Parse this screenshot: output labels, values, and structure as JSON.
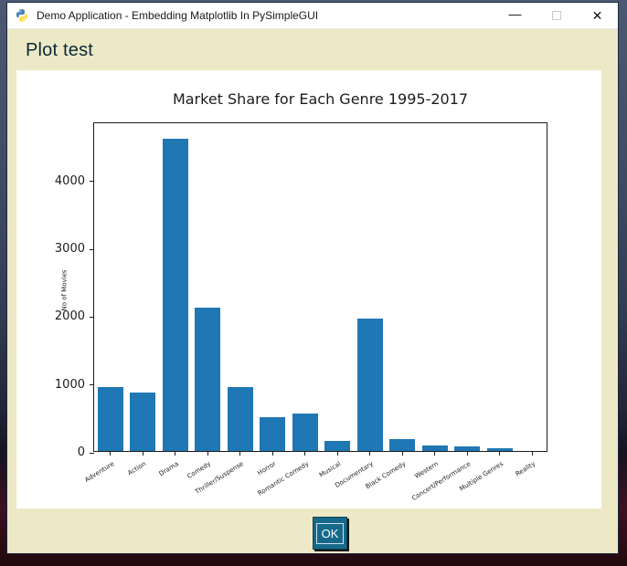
{
  "window": {
    "title": "Demo Application - Embedding Matplotlib In PySimpleGUI",
    "minimize_glyph": "—",
    "close_glyph": "✕"
  },
  "heading": "Plot test",
  "ok_button_label": "OK",
  "colors": {
    "window_bg": "#ede9c6",
    "titlebar_bg": "#ffffff",
    "heading_text": "#0a2b38",
    "button_bg": "#17698a",
    "bar": "#1f77b4"
  },
  "chart_data": {
    "type": "bar",
    "title": "Market Share for Each Genre 1995-2017",
    "xlabel": "",
    "ylabel": "No of Movies",
    "categories": [
      "Adventure",
      "Action",
      "Drama",
      "Comedy",
      "Thriller/Suspense",
      "Horror",
      "Romantic Comedy",
      "Musical",
      "Documentary",
      "Black Comedy",
      "Western",
      "Concert/Performance",
      "Multiple Genres",
      "Reality"
    ],
    "values": [
      940,
      860,
      4600,
      2120,
      940,
      500,
      550,
      150,
      1950,
      170,
      80,
      70,
      35,
      5
    ],
    "ylim": [
      0,
      4860
    ],
    "yticks": [
      0,
      1000,
      2000,
      3000,
      4000
    ],
    "grid": false,
    "legend_position": "none",
    "bar_color": "#1f77b4"
  }
}
